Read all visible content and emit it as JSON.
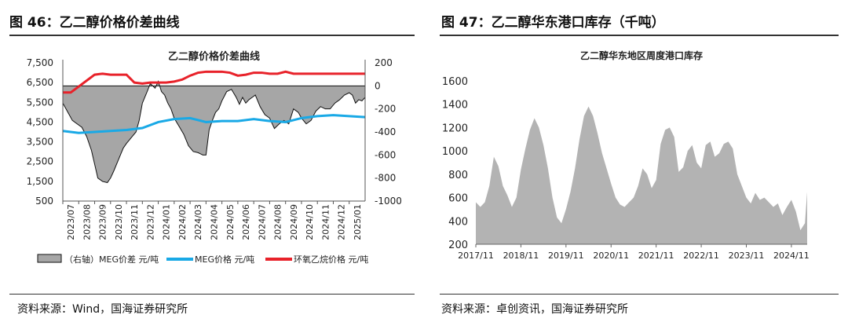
{
  "left": {
    "figure_title": "图 46：乙二醇价格价差曲线",
    "source": "资料来源：Wind，国海证券研究所"
  },
  "right": {
    "figure_title": "图 47：乙二醇华东港口库存（千吨）",
    "source": "资料来源：卓创资讯，国海证券研究所"
  },
  "colors": {
    "spread_fill": "#a6a6a6",
    "spread_stroke": "#111111",
    "meg_price": "#19a9e6",
    "eo_price": "#e8222a",
    "inventory_fill": "#b3b3b3"
  },
  "chart_data": [
    {
      "type": "area",
      "title": "乙二醇价格价差曲线",
      "x_tick_labels": [
        "2023/07",
        "2023/08",
        "2023/09",
        "2023/10",
        "2023/11",
        "2023/12",
        "2024/01",
        "2024/02",
        "2024/03",
        "2024/04",
        "2024/05",
        "2024/06",
        "2024/07",
        "2024/08",
        "2024/09",
        "2024/10",
        "2024/11",
        "2024/12",
        "2025/01"
      ],
      "y_left": {
        "ticks": [
          500,
          1500,
          2500,
          3500,
          4500,
          5500,
          6500,
          7500
        ],
        "range": [
          500,
          7500
        ]
      },
      "y_right": {
        "ticks": [
          -1000,
          -800,
          -600,
          -400,
          -200,
          0,
          200
        ],
        "range": [
          -1000,
          200
        ]
      },
      "x_range": [
        0,
        19
      ],
      "series": [
        {
          "name": "（右轴）MEG价差 元/吨",
          "type": "area",
          "axis": "right",
          "x": [
            0,
            0.2,
            0.4,
            0.6,
            0.9,
            1.2,
            1.5,
            1.8,
            2.0,
            2.2,
            2.5,
            2.8,
            3.0,
            3.2,
            3.5,
            3.8,
            4.0,
            4.3,
            4.6,
            4.8,
            5.0,
            5.3,
            5.5,
            5.8,
            6.0,
            6.2,
            6.4,
            6.6,
            6.8,
            7.0,
            7.3,
            7.6,
            7.9,
            8.2,
            8.5,
            8.8,
            9.0,
            9.2,
            9.4,
            9.6,
            9.8,
            10.0,
            10.3,
            10.6,
            10.9,
            11.1,
            11.3,
            11.5,
            11.7,
            11.9,
            12.1,
            12.4,
            12.7,
            13.0,
            13.3,
            13.6,
            13.9,
            14.2,
            14.5,
            14.8,
            15.0,
            15.3,
            15.6,
            15.9,
            16.2,
            16.5,
            16.8,
            17.1,
            17.4,
            17.7,
            18.0,
            18.2,
            18.4,
            18.6,
            18.8,
            19.0
          ],
          "values": [
            -150,
            -200,
            -250,
            -300,
            -330,
            -360,
            -440,
            -560,
            -680,
            -800,
            -830,
            -840,
            -800,
            -740,
            -640,
            -540,
            -500,
            -450,
            -400,
            -300,
            -150,
            -50,
            20,
            -20,
            40,
            -50,
            -80,
            -150,
            -200,
            -280,
            -350,
            -420,
            -520,
            -570,
            -580,
            -600,
            -600,
            -380,
            -300,
            -230,
            -200,
            -130,
            -50,
            -30,
            -100,
            -160,
            -100,
            -150,
            -120,
            -100,
            -80,
            -180,
            -250,
            -280,
            -370,
            -330,
            -300,
            -330,
            -200,
            -230,
            -280,
            -330,
            -300,
            -220,
            -180,
            -200,
            -200,
            -150,
            -120,
            -80,
            -60,
            -80,
            -150,
            -120,
            -130,
            -100
          ]
        },
        {
          "name": "MEG价格 元/吨",
          "type": "line",
          "axis": "left",
          "x": [
            0,
            1,
            2,
            3,
            4,
            5,
            6,
            7,
            8,
            9,
            10,
            11,
            12,
            13,
            14,
            15,
            16,
            17,
            18,
            19
          ],
          "values": [
            4050,
            3950,
            4000,
            4050,
            4100,
            4200,
            4500,
            4650,
            4700,
            4500,
            4550,
            4550,
            4650,
            4550,
            4500,
            4700,
            4800,
            4850,
            4800,
            4750
          ]
        },
        {
          "name": "环氧乙烷价格 元/吨",
          "type": "line",
          "axis": "left",
          "x": [
            0,
            0.5,
            1.0,
            1.5,
            2.0,
            2.5,
            3.0,
            3.5,
            4.0,
            4.5,
            5.0,
            5.5,
            6.0,
            6.5,
            7.0,
            7.5,
            8.0,
            8.5,
            9.0,
            9.5,
            10.0,
            10.5,
            11.0,
            11.5,
            12.0,
            12.5,
            13.0,
            13.5,
            14.0,
            14.5,
            15.0,
            15.5,
            16.0,
            16.5,
            17.0,
            17.5,
            18.0,
            18.5,
            19.0
          ],
          "values": [
            6000,
            6000,
            6300,
            6600,
            6900,
            6950,
            6900,
            6900,
            6900,
            6500,
            6450,
            6500,
            6500,
            6500,
            6550,
            6650,
            6850,
            7000,
            7050,
            7050,
            7050,
            7000,
            6850,
            6900,
            7000,
            7000,
            6950,
            6950,
            7050,
            6950,
            6950,
            6950,
            6950,
            6950,
            6950,
            6950,
            6950,
            6950,
            6950
          ]
        }
      ]
    },
    {
      "type": "area",
      "title": "乙二醇华东地区周度港口库存",
      "x_tick_labels": [
        "2017/11",
        "2018/11",
        "2019/11",
        "2020/11",
        "2021/11",
        "2022/11",
        "2023/11",
        "2024/11"
      ],
      "y": {
        "ticks": [
          200,
          400,
          600,
          800,
          1000,
          1200,
          1400,
          1600
        ],
        "range": [
          200,
          1600
        ]
      },
      "x_range": [
        0,
        7.35
      ],
      "series": [
        {
          "name": "",
          "type": "area",
          "x": [
            0,
            0.1,
            0.2,
            0.3,
            0.4,
            0.5,
            0.6,
            0.7,
            0.8,
            0.9,
            1.0,
            1.1,
            1.2,
            1.3,
            1.4,
            1.5,
            1.6,
            1.7,
            1.8,
            1.9,
            2.0,
            2.1,
            2.2,
            2.3,
            2.4,
            2.5,
            2.6,
            2.7,
            2.8,
            2.9,
            3.0,
            3.1,
            3.2,
            3.3,
            3.4,
            3.5,
            3.6,
            3.7,
            3.8,
            3.9,
            4.0,
            4.1,
            4.2,
            4.3,
            4.4,
            4.5,
            4.6,
            4.7,
            4.8,
            4.9,
            5.0,
            5.1,
            5.2,
            5.3,
            5.4,
            5.5,
            5.6,
            5.7,
            5.8,
            5.9,
            6.0,
            6.1,
            6.2,
            6.3,
            6.4,
            6.5,
            6.6,
            6.7,
            6.8,
            6.9,
            7.0,
            7.1,
            7.2,
            7.3,
            7.35
          ],
          "values": [
            560,
            520,
            560,
            700,
            950,
            870,
            700,
            620,
            520,
            600,
            840,
            1020,
            1180,
            1280,
            1200,
            1050,
            850,
            600,
            430,
            380,
            500,
            650,
            850,
            1100,
            1300,
            1380,
            1300,
            1150,
            980,
            850,
            720,
            600,
            540,
            520,
            560,
            600,
            700,
            850,
            800,
            680,
            750,
            1060,
            1180,
            1200,
            1120,
            820,
            860,
            1000,
            1050,
            900,
            850,
            1050,
            1080,
            950,
            980,
            1060,
            1080,
            1020,
            800,
            700,
            600,
            550,
            640,
            580,
            600,
            560,
            520,
            550,
            450,
            520,
            580,
            480,
            320,
            380,
            650
          ]
        }
      ]
    }
  ]
}
